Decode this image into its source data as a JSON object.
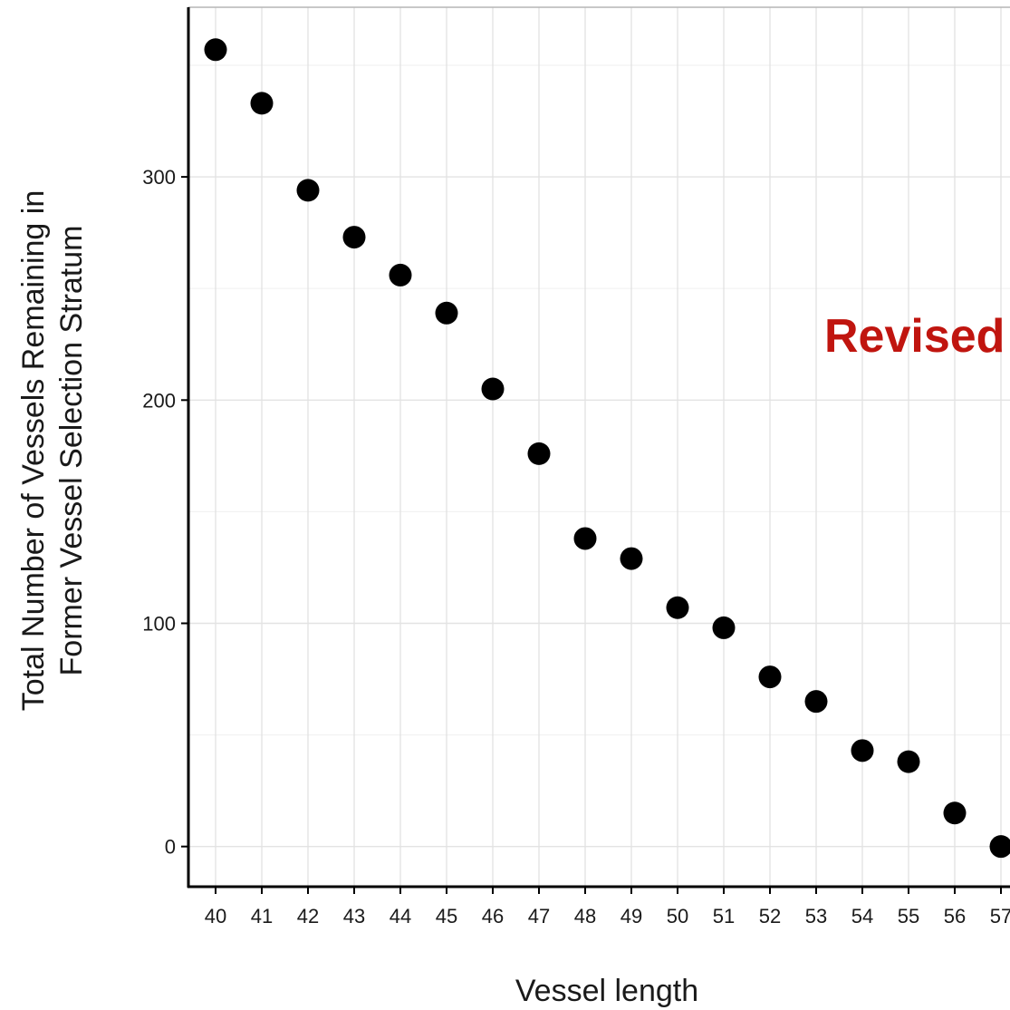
{
  "chart_data": {
    "type": "scatter",
    "xlabel": "Vessel length",
    "ylabel_lines": [
      "Total Number of Vessels Remaining in",
      "Former Vessel Selection Stratum"
    ],
    "x": [
      40,
      41,
      42,
      43,
      44,
      45,
      46,
      47,
      48,
      49,
      50,
      51,
      52,
      53,
      54,
      55,
      56,
      57
    ],
    "y": [
      357,
      333,
      294,
      273,
      256,
      239,
      205,
      176,
      138,
      129,
      107,
      98,
      76,
      65,
      43,
      38,
      15,
      0
    ],
    "x_ticks": [
      "40",
      "41",
      "42",
      "43",
      "44",
      "45",
      "46",
      "47",
      "48",
      "49",
      "50",
      "51",
      "52",
      "53",
      "54",
      "55",
      "56",
      "57"
    ],
    "y_ticks": [
      0,
      100,
      200,
      300
    ],
    "ylim": [
      -18,
      376
    ],
    "grid": true,
    "annotation": {
      "text": "Revised",
      "color": "#c0150f"
    },
    "marker_color": "#000000"
  }
}
